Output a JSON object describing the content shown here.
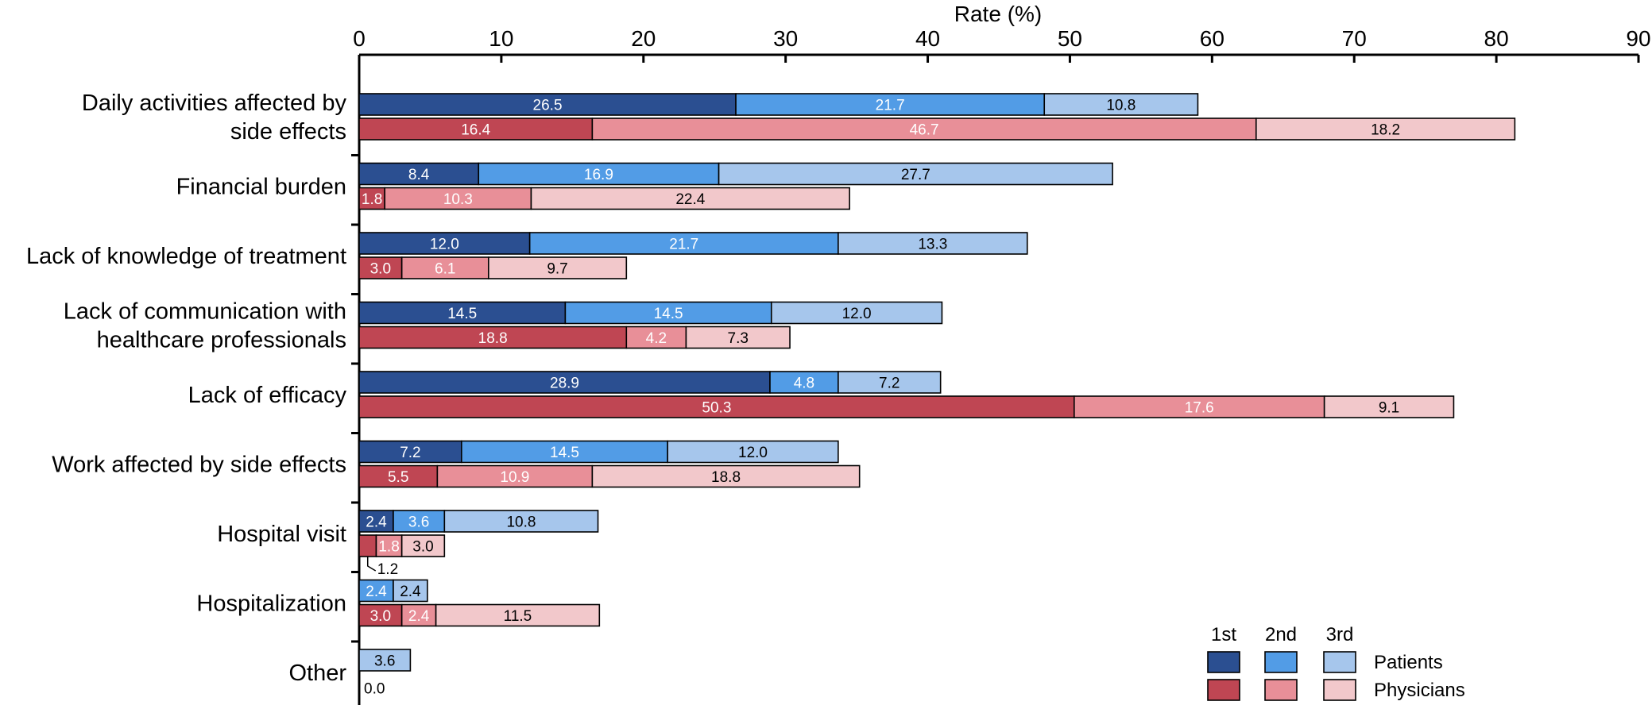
{
  "chart_data": {
    "type": "bar",
    "orientation": "horizontal",
    "stacked": true,
    "xlabel": "Rate (%)",
    "xlim": [
      0,
      90
    ],
    "xticks": [
      0,
      10,
      20,
      30,
      40,
      50,
      60,
      70,
      80,
      90
    ],
    "categories": [
      [
        "Daily activities affected by",
        "side effects"
      ],
      [
        "Financial burden"
      ],
      [
        "Lack of knowledge of treatment"
      ],
      [
        "Lack of communication with",
        "healthcare professionals"
      ],
      [
        "Lack of efficacy"
      ],
      [
        "Work affected by side effects"
      ],
      [
        "Hospital visit"
      ],
      [
        "Hospitalization"
      ],
      [
        "Other"
      ]
    ],
    "groups": [
      {
        "name": "Patients",
        "segments": [
          "1st",
          "2nd",
          "3rd"
        ],
        "colors": [
          "#2b4f91",
          "#529ce6",
          "#a6c6ec"
        ],
        "label_colors": [
          "#ffffff",
          "#ffffff",
          "#000000"
        ],
        "values": [
          [
            26.5,
            21.7,
            10.8
          ],
          [
            8.4,
            16.9,
            27.7
          ],
          [
            12.0,
            21.7,
            13.3
          ],
          [
            14.5,
            14.5,
            12.0
          ],
          [
            28.9,
            4.8,
            7.2
          ],
          [
            7.2,
            14.5,
            12.0
          ],
          [
            2.4,
            3.6,
            10.8
          ],
          [
            0,
            2.4,
            2.4
          ],
          [
            0,
            0,
            3.6
          ]
        ]
      },
      {
        "name": "Physicians",
        "segments": [
          "1st",
          "2nd",
          "3rd"
        ],
        "colors": [
          "#bf4653",
          "#e88f98",
          "#f2c8cb"
        ],
        "label_colors": [
          "#ffffff",
          "#ffffff",
          "#000000"
        ],
        "values": [
          [
            16.4,
            46.7,
            18.2
          ],
          [
            1.8,
            10.3,
            22.4
          ],
          [
            3.0,
            6.1,
            9.7
          ],
          [
            18.8,
            4.2,
            7.3
          ],
          [
            50.3,
            17.6,
            9.1
          ],
          [
            5.5,
            10.9,
            18.8
          ],
          [
            1.2,
            1.8,
            3.0
          ],
          [
            3.0,
            2.4,
            11.5
          ],
          [
            0,
            0,
            0
          ]
        ]
      }
    ],
    "value_labels": [
      [
        [
          "26.5",
          "21.7",
          "10.8"
        ],
        [
          "16.4",
          "46.7",
          "18.2"
        ]
      ],
      [
        [
          "8.4",
          "16.9",
          "27.7"
        ],
        [
          "1.8",
          "10.3",
          "22.4"
        ]
      ],
      [
        [
          "12.0",
          "21.7",
          "13.3"
        ],
        [
          "3.0",
          "6.1",
          "9.7"
        ]
      ],
      [
        [
          "14.5",
          "14.5",
          "12.0"
        ],
        [
          "18.8",
          "4.2",
          "7.3"
        ]
      ],
      [
        [
          "28.9",
          "4.8",
          "7.2"
        ],
        [
          "50.3",
          "17.6",
          "9.1"
        ]
      ],
      [
        [
          "7.2",
          "14.5",
          "12.0"
        ],
        [
          "5.5",
          "10.9",
          "18.8"
        ]
      ],
      [
        [
          "2.4",
          "3.6",
          "10.8"
        ],
        [
          "1.2",
          "1.8",
          "3.0"
        ]
      ],
      [
        [
          "",
          "2.4",
          "2.4"
        ],
        [
          "3.0",
          "2.4",
          "11.5"
        ]
      ],
      [
        [
          "",
          "",
          "3.6"
        ],
        [
          "0.0",
          "",
          ""
        ]
      ]
    ],
    "outside_labels": [
      {
        "category": 6,
        "group": 1,
        "segment": 0,
        "text": "1.2",
        "leader": true
      },
      {
        "category": 8,
        "group": 1,
        "segment": 0,
        "text": "0.0",
        "leader": false
      }
    ],
    "legend": {
      "position": "bottom-right",
      "headers": [
        "1st",
        "2nd",
        "3rd"
      ],
      "rows": [
        "Patients",
        "Physicians"
      ]
    },
    "grid": false
  }
}
